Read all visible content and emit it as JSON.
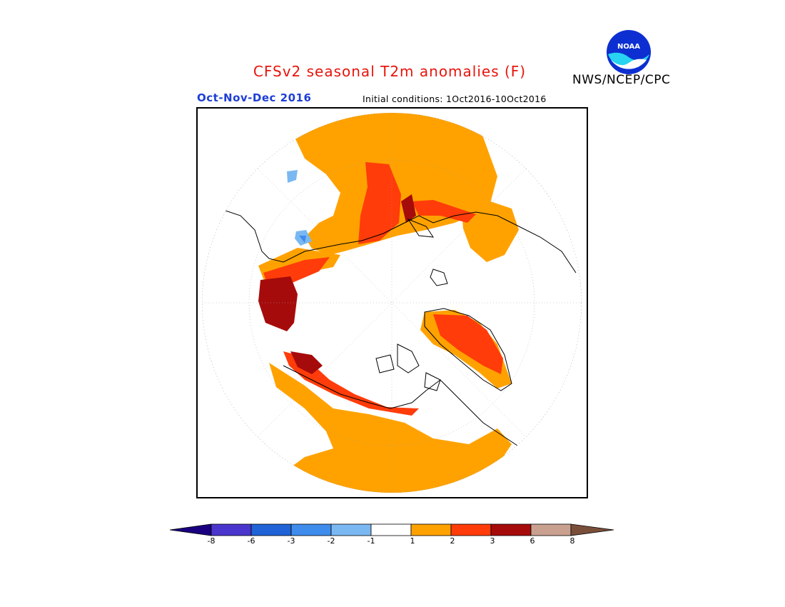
{
  "header": {
    "title": "CFSv2 seasonal T2m anomalies (F)",
    "agency": "NWS/NCEP/CPC",
    "logo_text": "NOAA",
    "period": "Oct-Nov-Dec 2016",
    "initial_conditions": "Initial conditions: 1Oct2016-10Oct2016"
  },
  "map": {
    "projection": "north-polar-stereographic",
    "variable": "T2m anomaly",
    "units": "F"
  },
  "legend": {
    "labels": [
      "-8",
      "-6",
      "-3",
      "-2",
      "-1",
      "1",
      "2",
      "3",
      "6",
      "8"
    ],
    "colors": {
      "lt_-8": "#1a0080",
      "-8_-6": "#4a36cc",
      "-6_-3": "#1f63d6",
      "-3_-2": "#3e8cec",
      "-2_-1": "#7ab8f2",
      "-1_1": "#ffffff",
      "1_2": "#ffa200",
      "2_3": "#ff3c0a",
      "3_6": "#a60b0b",
      "6_8": "#c9a090",
      "gt_8": "#7a4f3a"
    }
  }
}
